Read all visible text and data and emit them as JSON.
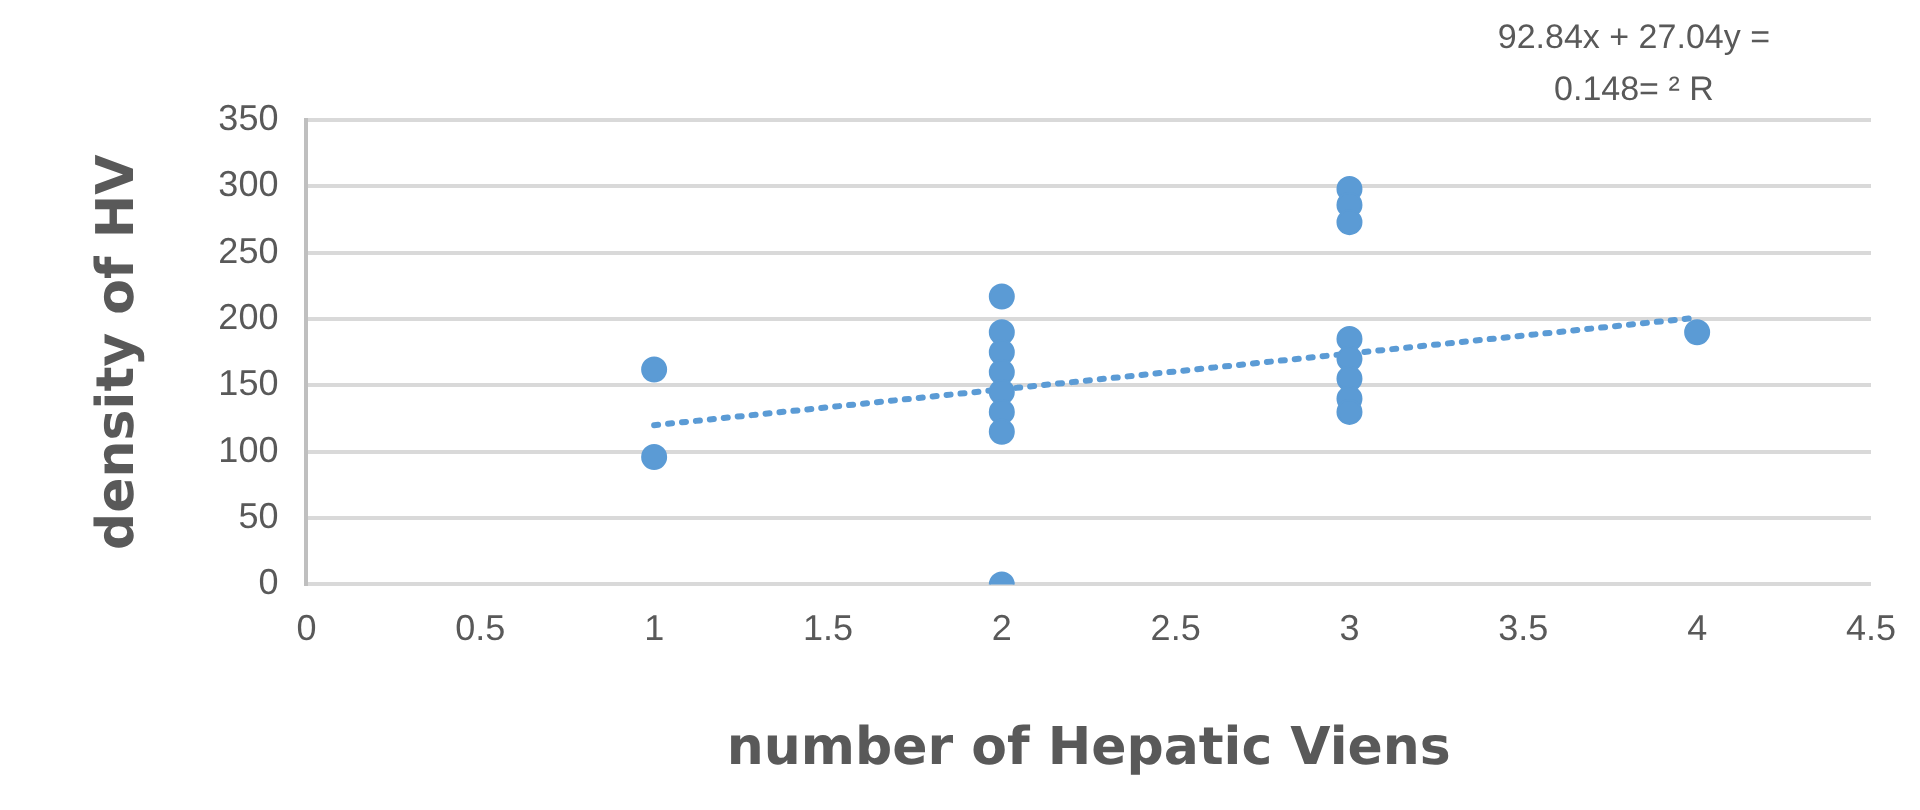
{
  "chart_data": {
    "type": "scatter",
    "xlabel": "number of Hepatic Viens",
    "ylabel": "density of HV",
    "annotations": [
      "92.84x + 27.04y =",
      "0.148= ² R"
    ],
    "series": [
      {
        "color": "#5b9bd5",
        "marker": "circle",
        "x": [
          1,
          1,
          2,
          2,
          2,
          2,
          2,
          2,
          2,
          2,
          3,
          3,
          3,
          3,
          3,
          3,
          3,
          3,
          4
        ],
        "values": [
          162,
          96,
          217,
          190,
          175,
          160,
          145,
          130,
          115,
          0,
          298,
          286,
          273,
          185,
          170,
          155,
          140,
          130,
          190
        ]
      },
      {
        "type": "line",
        "color": "#5b9bd5",
        "marker": "none",
        "line_style": "dotted",
        "x": [
          1,
          4
        ],
        "values": [
          120,
          201
        ]
      }
    ],
    "xlim": [
      0,
      4.5
    ],
    "xticks": [
      0,
      0.5,
      1,
      1.5,
      2,
      2.5,
      3,
      3.5,
      4,
      4.5
    ],
    "ylim": [
      0,
      350
    ],
    "yticks": [
      0,
      50,
      100,
      150,
      200,
      250,
      300,
      350
    ],
    "grid": "y",
    "legend": false
  }
}
